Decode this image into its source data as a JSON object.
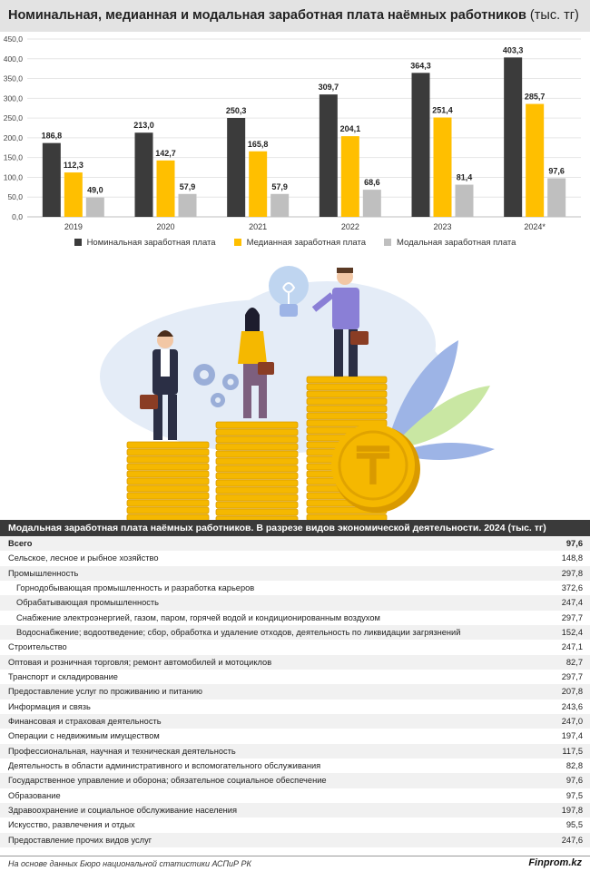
{
  "header": {
    "title": "Номинальная, медианная и модальная заработная плата наёмных работников",
    "unit": "(тыс. тг)"
  },
  "chart_data": {
    "type": "bar",
    "categories": [
      "2019",
      "2020",
      "2021",
      "2022",
      "2023",
      "2024*"
    ],
    "series": [
      {
        "name": "Номинальная заработная плата",
        "color": "#3b3b3b",
        "values": [
          186.8,
          213.0,
          250.3,
          309.7,
          364.3,
          403.3
        ],
        "labels": [
          "186,8",
          "213,0",
          "250,3",
          "309,7",
          "364,3",
          "403,3"
        ]
      },
      {
        "name": "Медианная заработная плата",
        "color": "#ffbf00",
        "values": [
          112.3,
          142.7,
          165.8,
          204.1,
          251.4,
          285.7
        ],
        "labels": [
          "112,3",
          "142,7",
          "165,8",
          "204,1",
          "251,4",
          "285,7"
        ]
      },
      {
        "name": "Модальная заработная плата",
        "color": "#bfbfbf",
        "values": [
          49.0,
          57.9,
          57.9,
          68.6,
          81.4,
          97.6
        ],
        "labels": [
          "49,0",
          "57,9",
          "57,9",
          "68,6",
          "81,4",
          "97,6"
        ]
      }
    ],
    "ylim": [
      0,
      450
    ],
    "yticks": [
      "0,0",
      "50,0",
      "100,0",
      "150,0",
      "200,0",
      "250,0",
      "300,0",
      "350,0",
      "400,0",
      "450,0"
    ],
    "grid": true,
    "legend": "bottom"
  },
  "illustration": {
    "coin_symbol": "₸",
    "colors": {
      "coin": "#f5b800",
      "coin_dark": "#d99a00",
      "blob": "#e4ecf7",
      "leaf_blue": "#9db4e6",
      "leaf_green": "#c9e7a3",
      "bulb": "#bfd5f0",
      "gear": "#9aaed8"
    }
  },
  "table": {
    "title": "Модальная заработная плата наёмных работников. В разрезе видов экономической деятельности. 2024 (тыс. тг)",
    "rows": [
      {
        "label": "Всего",
        "value": "97,6"
      },
      {
        "label": "Сельское, лесное и рыбное хозяйство",
        "value": "148,8"
      },
      {
        "label": "Промышленность",
        "value": "297,8"
      },
      {
        "label": "Горнодобывающая промышленность и разработка карьеров",
        "value": "372,6"
      },
      {
        "label": "Обрабатывающая промышленность",
        "value": "247,4"
      },
      {
        "label": "Снабжение электроэнергией, газом, паром, горячей водой и кондиционированным воздухом",
        "value": "297,7"
      },
      {
        "label": "Водоснабжение; водоотведение; сбор, обработка и удаление отходов, деятельность по ликвидации загрязнений",
        "value": "152,4"
      },
      {
        "label": "Строительство",
        "value": "247,1"
      },
      {
        "label": "Оптовая и розничная торговля; ремонт автомобилей и мотоциклов",
        "value": "82,7"
      },
      {
        "label": "Транспорт и складирование",
        "value": "297,7"
      },
      {
        "label": "Предоставление услуг по проживанию и питанию",
        "value": "207,8"
      },
      {
        "label": "Информация и связь",
        "value": "243,6"
      },
      {
        "label": "Финансовая и страховая деятельность",
        "value": "247,0"
      },
      {
        "label": "Операции с недвижимым имуществом",
        "value": "197,4"
      },
      {
        "label": "Профессиональная, научная и техническая деятельность",
        "value": "117,5"
      },
      {
        "label": "Деятельность в области административного и вспомогательного обслуживания",
        "value": "82,8"
      },
      {
        "label": "Государственное управление и оборона; обязательное социальное обеспечение",
        "value": "97,6"
      },
      {
        "label": "Образование",
        "value": "97,5"
      },
      {
        "label": "Здравоохранение и социальное обслуживание населения",
        "value": "197,8"
      },
      {
        "label": "Искусство, развлечения и отдых",
        "value": "95,5"
      },
      {
        "label": "Предоставление прочих видов услуг",
        "value": "247,6"
      }
    ]
  },
  "footer": {
    "source": "На основе данных Бюро национальной статистики АСПиР РК",
    "brand": "Finprom.kz"
  }
}
